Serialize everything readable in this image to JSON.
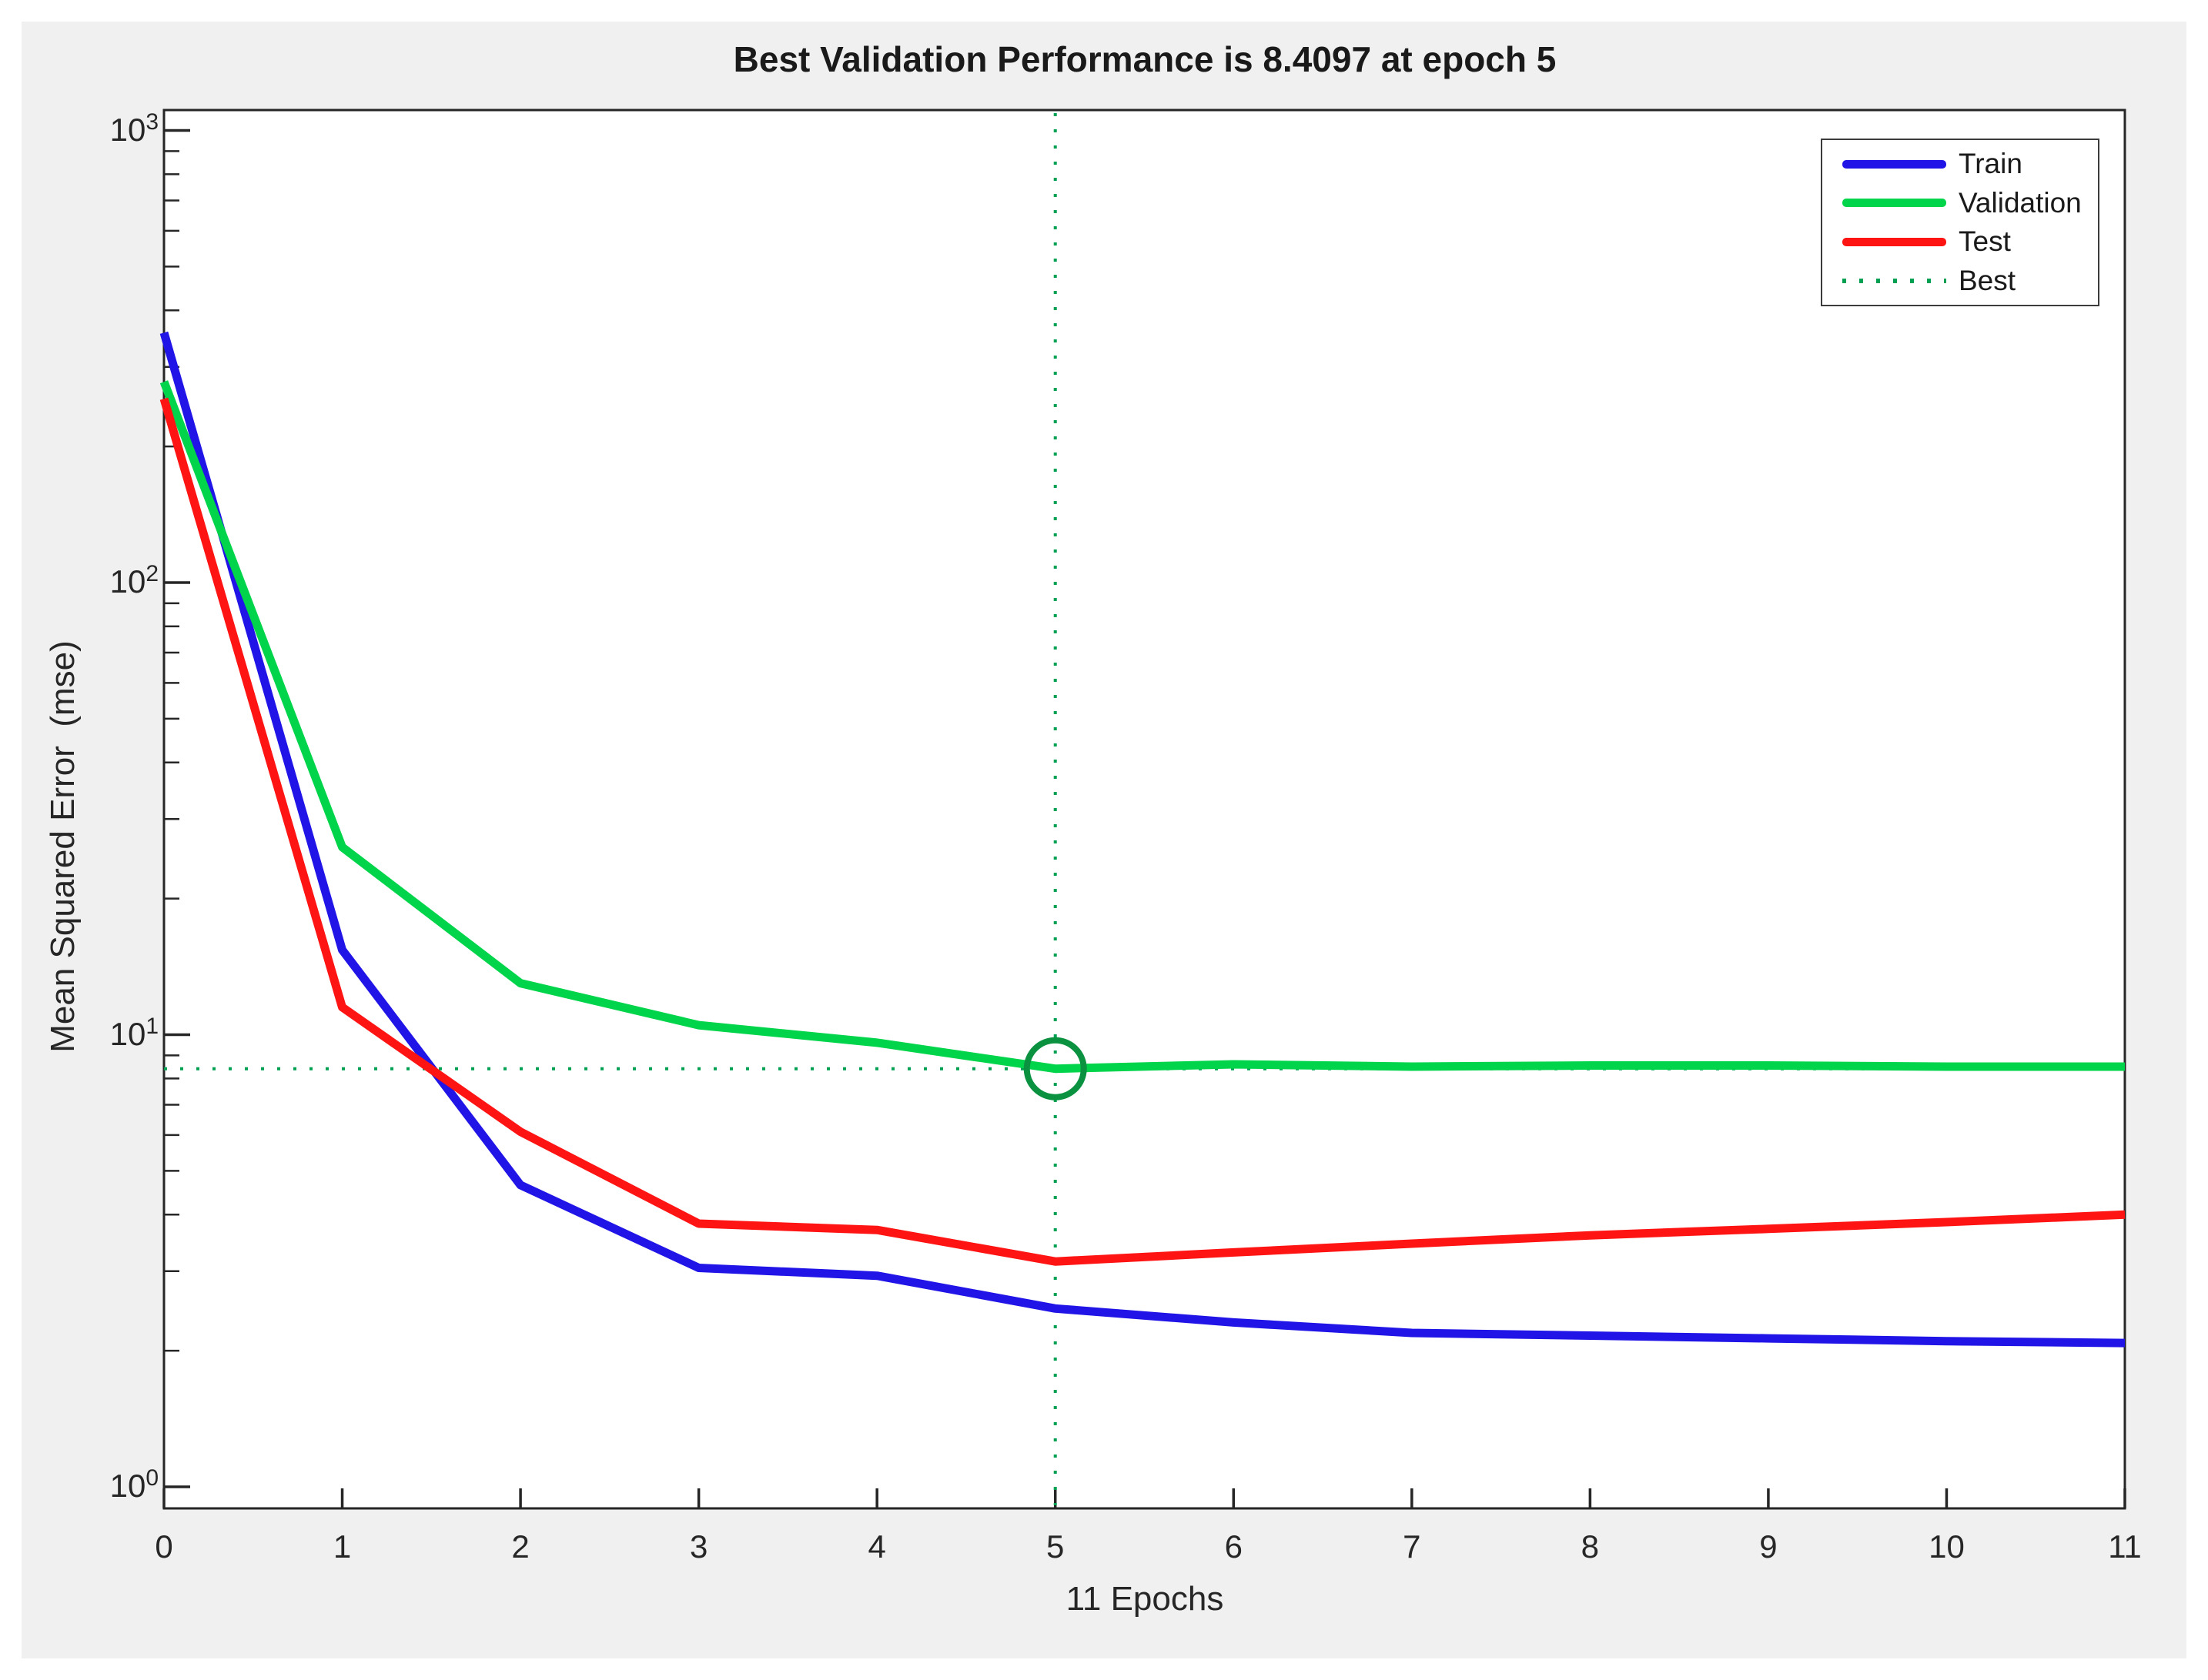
{
  "figure": {
    "title": "Best Validation Performance is 8.4097 at epoch 5",
    "xlabel": "11 Epochs",
    "ylabel": "Mean Squared Error  (mse)"
  },
  "legend": {
    "items": [
      {
        "label": "Train",
        "color": "#2015e6",
        "style": "solid"
      },
      {
        "label": "Validation",
        "color": "#00d44a",
        "style": "solid"
      },
      {
        "label": "Test",
        "color": "#ff1414",
        "style": "solid"
      },
      {
        "label": "Best",
        "color": "#00a053",
        "style": "dotted"
      }
    ]
  },
  "chart_data": {
    "type": "line",
    "title": "Best Validation Performance is 8.4097 at epoch 5",
    "xlabel": "11 Epochs",
    "ylabel": "Mean Squared Error  (mse)",
    "yscale": "log",
    "grid": false,
    "legend_position": "top-right",
    "xlim": [
      0,
      11
    ],
    "ylim": [
      1,
      1000
    ],
    "x_ticks": [
      0,
      1,
      2,
      3,
      4,
      5,
      6,
      7,
      8,
      9,
      10,
      11
    ],
    "y_tick_exponents": [
      0,
      1,
      2,
      3
    ],
    "x": [
      0,
      1,
      2,
      3,
      4,
      5,
      6,
      7,
      8,
      9,
      10,
      11
    ],
    "series": [
      {
        "name": "Train",
        "color": "#2015e6",
        "values": [
          357,
          15.4,
          4.65,
          3.05,
          2.93,
          2.48,
          2.31,
          2.19,
          2.16,
          2.13,
          2.1,
          2.08
        ]
      },
      {
        "name": "Validation",
        "color": "#00d44a",
        "values": [
          278,
          26.0,
          13.0,
          10.5,
          9.6,
          8.4097,
          8.6,
          8.5,
          8.55,
          8.55,
          8.5,
          8.5
        ]
      },
      {
        "name": "Test",
        "color": "#ff1414",
        "values": [
          255,
          11.5,
          6.1,
          3.82,
          3.7,
          3.15,
          3.3,
          3.45,
          3.6,
          3.72,
          3.85,
          4.0
        ]
      }
    ],
    "best": {
      "epoch": 5,
      "value": 8.4097,
      "line_color": "#00a053",
      "marker_color": "#0a9240"
    }
  },
  "colors": {
    "canvas_background": "#f0f0f1",
    "plot_background": "#ffffff",
    "axis": "#262626",
    "title_text": "#1a1a1a"
  }
}
